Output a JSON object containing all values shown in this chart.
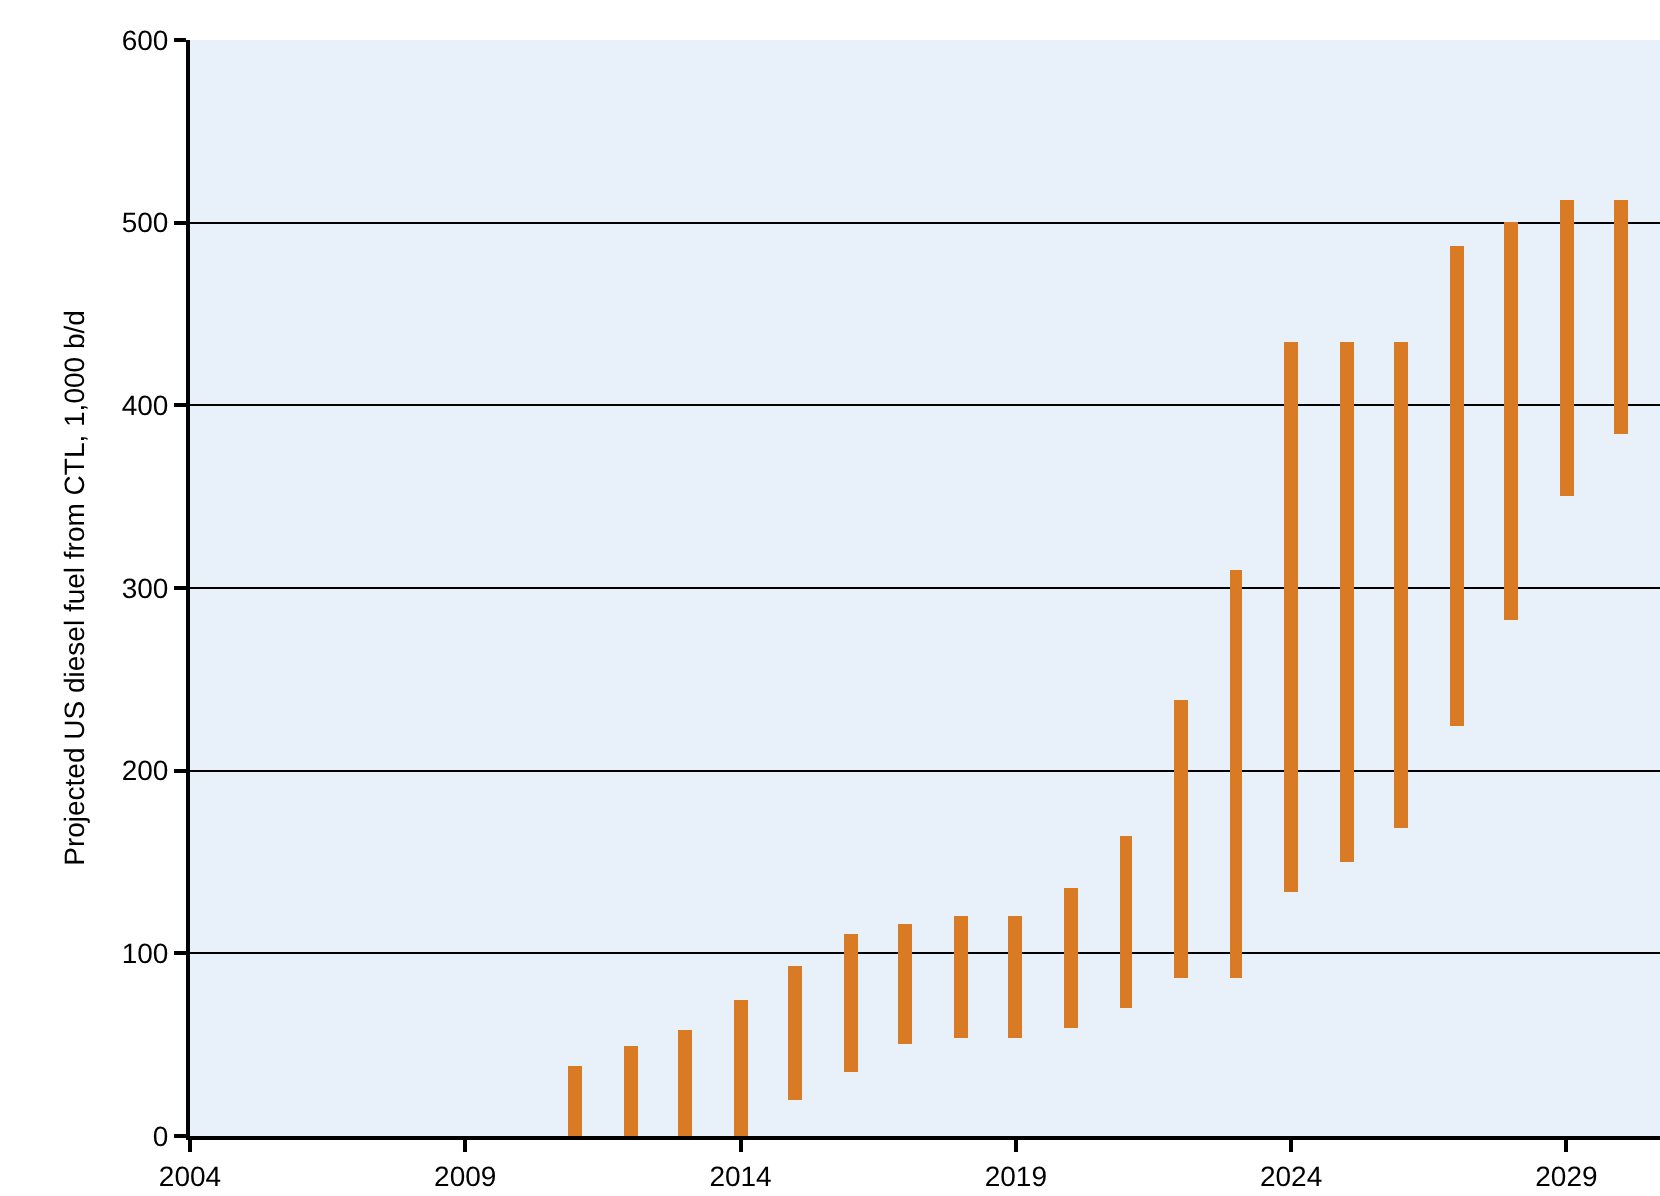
{
  "chart_data": {
    "type": "bar",
    "ylabel": "Projected US diesel fuel from CTL, 1,000 b/d",
    "x": [
      2011,
      2012,
      2013,
      2014,
      2015,
      2016,
      2017,
      2018,
      2019,
      2020,
      2021,
      2022,
      2023,
      2024,
      2025,
      2026,
      2027,
      2028,
      2029,
      2030
    ],
    "base": [
      0,
      0,
      0,
      0,
      20,
      35,
      50,
      54,
      54,
      59,
      70,
      87,
      86,
      134,
      150,
      169,
      224,
      282,
      350,
      384
    ],
    "values": [
      38,
      49,
      58,
      74,
      73,
      76,
      66,
      66,
      66,
      77,
      94,
      152,
      224,
      301,
      285,
      266,
      263,
      218,
      162,
      128
    ],
    "color": "#d97b25",
    "xlim": [
      2004,
      2030.7
    ],
    "xticks": [
      2004,
      2009,
      2014,
      2019,
      2024,
      2029
    ],
    "ylim": [
      0,
      600
    ],
    "yticks": [
      0,
      100,
      200,
      300,
      400,
      500,
      600
    ],
    "grid": "y",
    "legend": false
  }
}
